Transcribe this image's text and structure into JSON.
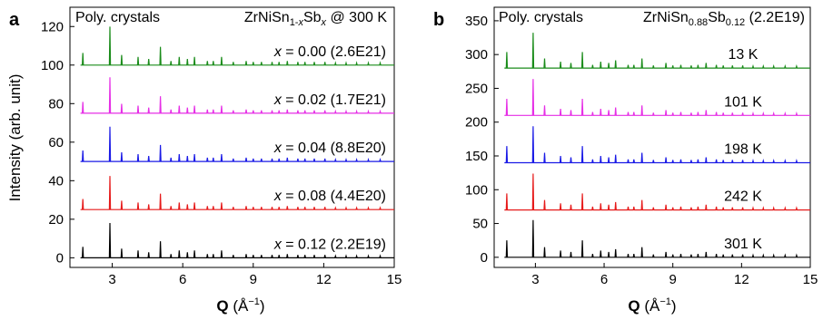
{
  "figure": {
    "panels": [
      "a",
      "b"
    ]
  },
  "chart_data": [
    {
      "type": "line",
      "panel_label": "a",
      "title_left": "Poly. crystals",
      "title_right": {
        "base": "ZrNiSn",
        "sub1": "1-",
        "sub1_italic": "x",
        "mid": "Sb",
        "sub2_italic": "x",
        "suffix": " @ 300 K"
      },
      "xlabel": {
        "bold": "Q",
        "rest": " (Å",
        "sup": "−1",
        "close": ")"
      },
      "ylabel": "Intensity (arb. unit)",
      "xlim": [
        1.2,
        15
      ],
      "ylim": [
        -5,
        130
      ],
      "xticks": [
        3,
        6,
        9,
        12,
        15
      ],
      "yticks": [
        0,
        20,
        40,
        60,
        80,
        100,
        120
      ],
      "peak_positions": [
        1.75,
        2.9,
        3.4,
        4.1,
        4.55,
        5.05,
        5.5,
        5.85,
        6.2,
        6.5,
        7.05,
        7.3,
        7.65,
        8.15,
        8.7,
        9.0,
        9.35,
        9.8,
        10.1,
        10.45,
        10.9,
        11.2,
        11.6,
        12.05,
        12.5,
        12.95,
        13.4,
        13.9,
        14.4
      ],
      "peak_heights": [
        6,
        19,
        5,
        4,
        3,
        9,
        2,
        4,
        3,
        4,
        2,
        2,
        4,
        1.5,
        2,
        1.5,
        1.5,
        1.5,
        1.5,
        2,
        1.5,
        1.5,
        1.5,
        1.5,
        1,
        1,
        1,
        1,
        1
      ],
      "series": [
        {
          "name": "x = 0.00 (2.6E21)",
          "x_label": "x",
          "rest": " = 0.00 (2.6E21)",
          "offset": 100,
          "scale": 1.05,
          "color": "#1a8c1a"
        },
        {
          "name": "x = 0.02 (1.7E21)",
          "x_label": "x",
          "rest": " = 0.02 (1.7E21)",
          "offset": 75,
          "scale": 0.98,
          "color": "#e62ee6"
        },
        {
          "name": "x = 0.04 (8.8E20)",
          "x_label": "x",
          "rest": " = 0.04 (8.8E20)",
          "offset": 50,
          "scale": 0.95,
          "color": "#1a1ae6"
        },
        {
          "name": "x = 0.08 (4.4E20)",
          "x_label": "x",
          "rest": " = 0.08 (4.4E20)",
          "offset": 25,
          "scale": 0.92,
          "color": "#e61a1a"
        },
        {
          "name": "x = 0.12 (2.2E19)",
          "x_label": "x",
          "rest": " = 0.12 (2.2E19)",
          "offset": 0,
          "scale": 0.95,
          "color": "#000000"
        }
      ]
    },
    {
      "type": "line",
      "panel_label": "b",
      "title_left": "Poly. crystals",
      "title_right": {
        "base": "ZrNiSn",
        "sub1": "0.88",
        "mid": "Sb",
        "sub2": "0.12",
        "suffix": " (2.2E19)"
      },
      "xlabel": {
        "bold": "Q",
        "rest": " (Å",
        "sup": "−1",
        "close": ")"
      },
      "ylabel": "",
      "xlim": [
        1.2,
        15
      ],
      "ylim": [
        -15,
        370
      ],
      "xticks": [
        3,
        6,
        9,
        12,
        15
      ],
      "yticks": [
        0,
        50,
        100,
        150,
        200,
        250,
        300,
        350
      ],
      "peak_positions": [
        1.75,
        2.9,
        3.4,
        4.1,
        4.55,
        5.05,
        5.5,
        5.85,
        6.2,
        6.5,
        7.05,
        7.3,
        7.65,
        8.15,
        8.7,
        9.0,
        9.35,
        9.8,
        10.1,
        10.45,
        10.9,
        11.2,
        11.6,
        12.05,
        12.5,
        12.95,
        13.4,
        13.9,
        14.4
      ],
      "peak_heights": [
        25,
        55,
        15,
        10,
        8,
        25,
        5,
        10,
        8,
        12,
        5,
        5,
        15,
        4,
        8,
        4,
        5,
        4,
        5,
        8,
        5,
        4,
        4,
        4,
        3,
        3,
        3,
        3,
        3
      ],
      "series": [
        {
          "name": "13 K",
          "offset": 280,
          "scale": 0.95,
          "color": "#1a8c1a"
        },
        {
          "name": "101 K",
          "offset": 210,
          "scale": 0.98,
          "color": "#e62ee6"
        },
        {
          "name": "198 K",
          "offset": 140,
          "scale": 0.98,
          "color": "#1a1ae6"
        },
        {
          "name": "242 K",
          "offset": 70,
          "scale": 0.98,
          "color": "#e61a1a"
        },
        {
          "name": "301 K",
          "offset": 0,
          "scale": 1.0,
          "color": "#000000"
        }
      ]
    }
  ]
}
